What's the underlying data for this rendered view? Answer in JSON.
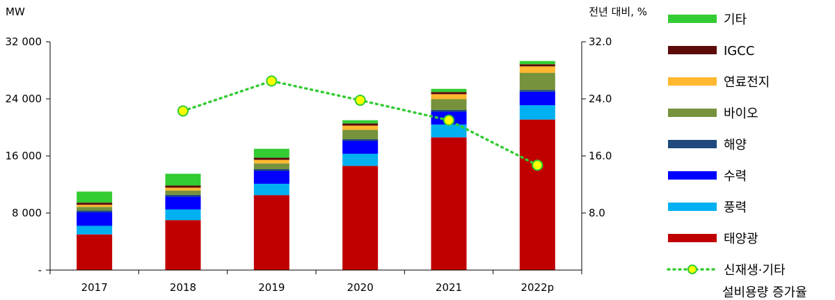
{
  "chart_data": {
    "type": "bar",
    "stacked": true,
    "categories": [
      "2017",
      "2018",
      "2019",
      "2020",
      "2021",
      "2022p"
    ],
    "left_axis": {
      "unit": "MW",
      "ylim": [
        0,
        32000
      ],
      "ticks": [
        0,
        8000,
        16000,
        24000,
        32000
      ],
      "tick_labels": [
        "-",
        "8 000",
        "16 000",
        "24 000",
        "32 000"
      ]
    },
    "right_axis": {
      "unit": "전년 대비, %",
      "ylim": [
        0,
        32
      ],
      "ticks": [
        8,
        16,
        24,
        32
      ],
      "tick_labels": [
        "8.0",
        "16.0",
        "24.0",
        "32.0"
      ]
    },
    "series": [
      {
        "name": "태양광",
        "color": "#C00000",
        "values": [
          5000,
          7000,
          10500,
          14600,
          18600,
          21100
        ]
      },
      {
        "name": "풍력",
        "color": "#00B0F0",
        "values": [
          1200,
          1500,
          1600,
          1700,
          1800,
          2000
        ]
      },
      {
        "name": "수력",
        "color": "#0000FF",
        "values": [
          1900,
          1800,
          1800,
          1800,
          1800,
          1900
        ]
      },
      {
        "name": "해양",
        "color": "#1F497D",
        "values": [
          250,
          250,
          250,
          250,
          250,
          250
        ]
      },
      {
        "name": "바이오",
        "color": "#76923C",
        "values": [
          500,
          600,
          800,
          1300,
          1500,
          2400
        ]
      },
      {
        "name": "연료전지",
        "color": "#FFB830",
        "values": [
          300,
          400,
          500,
          600,
          700,
          900
        ]
      },
      {
        "name": "IGCC",
        "color": "#5C0A0A",
        "values": [
          300,
          300,
          300,
          300,
          300,
          300
        ]
      },
      {
        "name": "기타",
        "color": "#33CC33",
        "values": [
          1550,
          1650,
          1250,
          450,
          450,
          450
        ]
      }
    ],
    "line_series": {
      "name": "신재생·기타 설비용량 증가율",
      "name_lines": [
        "신재생·기타",
        "설비용량 증가율"
      ],
      "color": "#33CC33",
      "marker_color": "#FFFF00",
      "axis": "right",
      "values": [
        null,
        22.3,
        26.5,
        23.8,
        21.0,
        14.7
      ]
    },
    "legend_position": "right"
  }
}
